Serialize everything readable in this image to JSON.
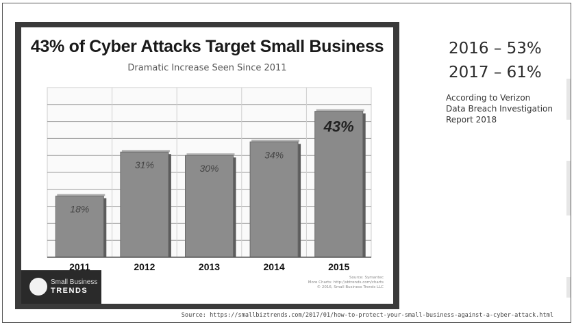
{
  "chart_data": {
    "type": "bar",
    "title": "43% of Cyber Attacks Target Small Business",
    "subtitle": "Dramatic Increase Seen Since 2011",
    "categories": [
      "2011",
      "2012",
      "2013",
      "2014",
      "2015"
    ],
    "values": [
      18,
      31,
      30,
      34,
      43
    ],
    "value_labels": [
      "18%",
      "31%",
      "30%",
      "34%",
      "43%"
    ],
    "ylim": [
      0,
      50
    ],
    "grid": true,
    "bar_colors": [
      "#8c8c8c",
      "#8c8c8c",
      "#8c8c8c",
      "#8c8c8c",
      "#8a8a8a"
    ]
  },
  "brand": {
    "line1": "Small Business",
    "line2": "TRENDS"
  },
  "chart_source_lines": [
    "Source: Symantec",
    "More Charts: http://sbtrends.com/charts",
    "© 2016, Small Business Trends LLC"
  ],
  "stats": {
    "line1": "2016 – 53%",
    "line2": "2017 – 61%"
  },
  "attribution": {
    "line1": "According to Verizon",
    "line2": "Data Breach Investigation",
    "line3": "Report 2018"
  },
  "footer": {
    "source": "Source: https://smallbiztrends.com/2017/01/how-to-protect-your-small-business-against-a-cyber-attack.html"
  }
}
